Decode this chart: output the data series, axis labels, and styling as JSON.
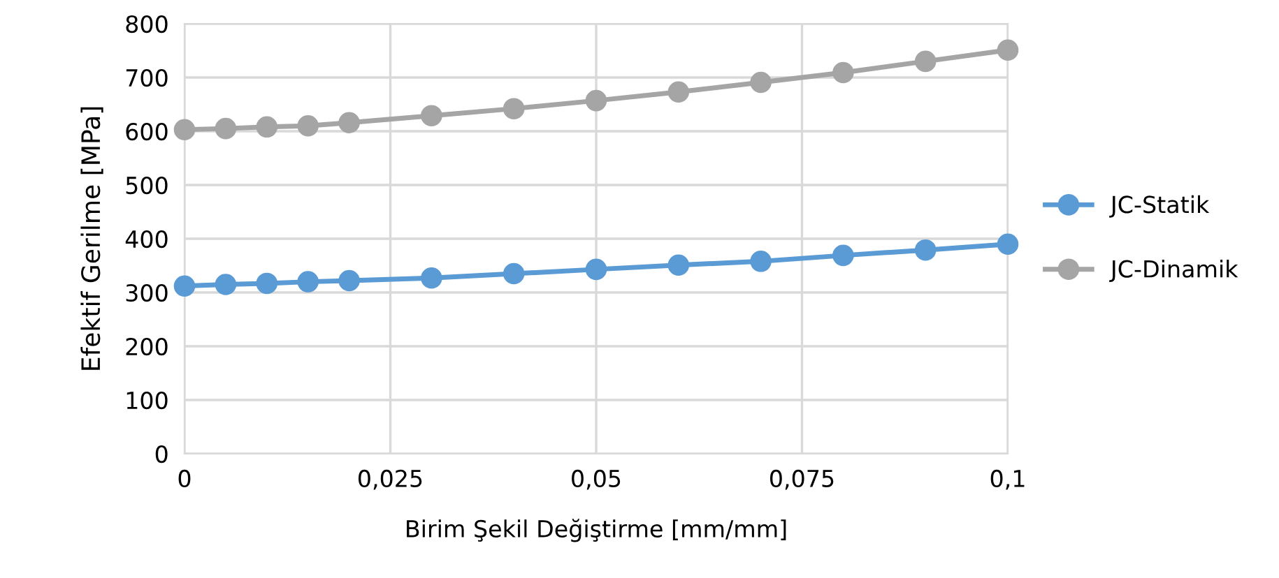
{
  "chart_data": {
    "type": "line",
    "xlabel": "Birim Şekil Değiştirme [mm/mm]",
    "ylabel": "Efektif Gerilme [MPa]",
    "x": [
      0,
      0.005,
      0.01,
      0.015,
      0.02,
      0.03,
      0.04,
      0.05,
      0.06,
      0.07,
      0.08,
      0.09,
      0.1
    ],
    "series": [
      {
        "name": "JC-Statik",
        "color": "#5b9bd5",
        "values": [
          312,
          315,
          317,
          320,
          322,
          327,
          335,
          343,
          351,
          358,
          369,
          379,
          390
        ]
      },
      {
        "name": "JC-Dinamik",
        "color": "#a5a5a5",
        "values": [
          603,
          605,
          608,
          610,
          616,
          629,
          642,
          657,
          673,
          691,
          709,
          730,
          751
        ]
      }
    ],
    "xlim": [
      0,
      0.1
    ],
    "xticks": [
      0,
      {
        "value": 0.025,
        "label": "0,025"
      },
      {
        "value": 0.05,
        "label": "0,05"
      },
      {
        "value": 0.075,
        "label": "0,075"
      },
      {
        "value": 0.1,
        "label": "0,1"
      }
    ],
    "ylim": [
      0,
      800
    ],
    "yticks": [
      0,
      100,
      200,
      300,
      400,
      500,
      600,
      700,
      800
    ],
    "grid": true,
    "legend": "right",
    "marker": "circle",
    "line_style": "solid"
  }
}
